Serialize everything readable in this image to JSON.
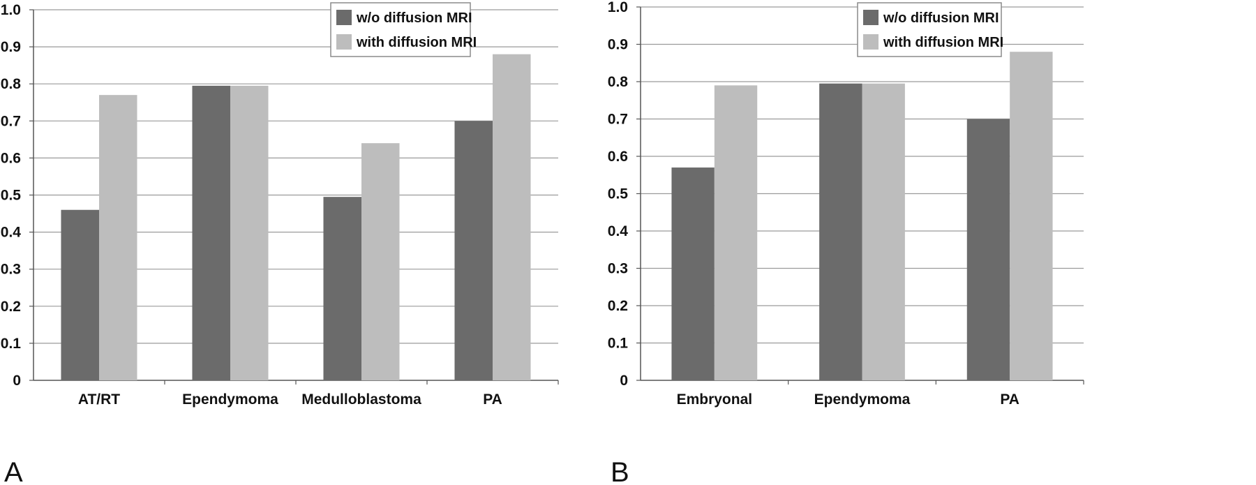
{
  "chart_data": [
    {
      "type": "bar",
      "panel_label": "A",
      "categories": [
        "AT/RT",
        "Ependymoma",
        "Medulloblastoma",
        "PA"
      ],
      "series": [
        {
          "name": "w/o diffusion MRI",
          "color": "#6b6b6b",
          "values": [
            0.46,
            0.795,
            0.495,
            0.7
          ]
        },
        {
          "name": "with diffusion MRI",
          "color": "#bdbdbd",
          "values": [
            0.77,
            0.795,
            0.64,
            0.88
          ]
        }
      ],
      "ylim": [
        0,
        1.0
      ],
      "yticks": [
        "0",
        "0.1",
        "0.2",
        "0.3",
        "0.4",
        "0.5",
        "0.6",
        "0.7",
        "0.8",
        "0.9",
        "1.0"
      ],
      "grid": true,
      "legend_position": "top-right"
    },
    {
      "type": "bar",
      "panel_label": "B",
      "categories": [
        "Embryonal",
        "Ependymoma",
        "PA"
      ],
      "series": [
        {
          "name": "w/o diffusion MRI",
          "color": "#6b6b6b",
          "values": [
            0.57,
            0.795,
            0.7
          ]
        },
        {
          "name": "with diffusion MRI",
          "color": "#bdbdbd",
          "values": [
            0.79,
            0.795,
            0.88
          ]
        }
      ],
      "ylim": [
        0,
        1.0
      ],
      "yticks": [
        "0",
        "0.1",
        "0.2",
        "0.3",
        "0.4",
        "0.5",
        "0.6",
        "0.7",
        "0.8",
        "0.9",
        "1.0"
      ],
      "grid": true,
      "legend_position": "top-right"
    }
  ]
}
